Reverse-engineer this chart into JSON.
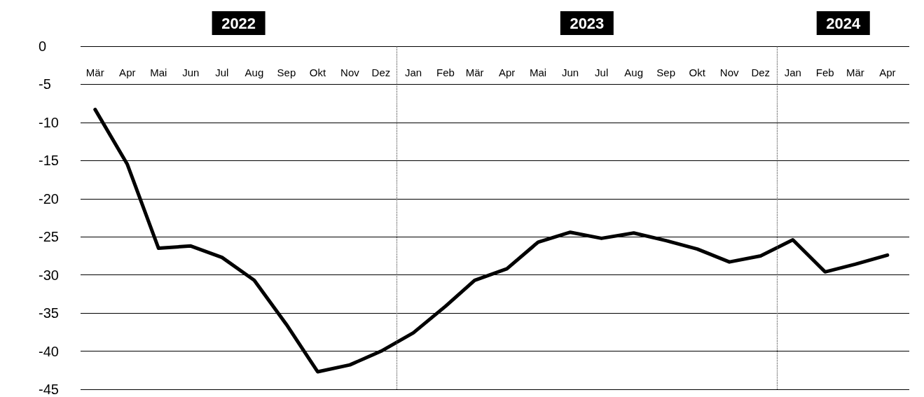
{
  "chart_data": {
    "type": "line",
    "x": [
      "2022-03",
      "2022-04",
      "2022-05",
      "2022-06",
      "2022-07",
      "2022-08",
      "2022-09",
      "2022-10",
      "2022-11",
      "2022-12",
      "2023-01",
      "2023-02",
      "2023-03",
      "2023-04",
      "2023-05",
      "2023-06",
      "2023-07",
      "2023-08",
      "2023-09",
      "2023-10",
      "2023-11",
      "2023-12",
      "2024-01",
      "2024-02",
      "2024-03",
      "2024-04"
    ],
    "series": [
      {
        "color": "#000000",
        "values": [
          -8.3,
          -15.5,
          -26.5,
          -26.2,
          -27.7,
          -30.7,
          -36.5,
          -42.7,
          -41.8,
          -40.0,
          -37.6,
          -34.1,
          -30.7,
          -29.2,
          -25.7,
          -24.4,
          -25.2,
          -24.5,
          -25.5,
          -26.6,
          -28.3,
          -27.5,
          -25.4,
          -29.6,
          -28.6,
          -27.4
        ]
      }
    ],
    "xlim": [
      "2022-02-15",
      "2024-04-22"
    ],
    "xticks": [
      {
        "value": "2022-03",
        "label": "Mär"
      },
      {
        "value": "2022-04",
        "label": "Apr"
      },
      {
        "value": "2022-05",
        "label": "Mai"
      },
      {
        "value": "2022-06",
        "label": "Jun"
      },
      {
        "value": "2022-07",
        "label": "Jul"
      },
      {
        "value": "2022-08",
        "label": "Aug"
      },
      {
        "value": "2022-09",
        "label": "Sep"
      },
      {
        "value": "2022-10",
        "label": "Okt"
      },
      {
        "value": "2022-11",
        "label": "Nov"
      },
      {
        "value": "2022-12",
        "label": "Dez"
      },
      {
        "value": "2023-01",
        "label": "Jan"
      },
      {
        "value": "2023-02",
        "label": "Feb"
      },
      {
        "value": "2023-03",
        "label": "Mär"
      },
      {
        "value": "2023-04",
        "label": "Apr"
      },
      {
        "value": "2023-05",
        "label": "Mai"
      },
      {
        "value": "2023-06",
        "label": "Jun"
      },
      {
        "value": "2023-07",
        "label": "Jul"
      },
      {
        "value": "2023-08",
        "label": "Aug"
      },
      {
        "value": "2023-09",
        "label": "Sep"
      },
      {
        "value": "2023-10",
        "label": "Okt"
      },
      {
        "value": "2023-11",
        "label": "Nov"
      },
      {
        "value": "2023-12",
        "label": "Dez"
      },
      {
        "value": "2024-01",
        "label": "Jan"
      },
      {
        "value": "2024-02",
        "label": "Feb"
      },
      {
        "value": "2024-03",
        "label": "Mär"
      },
      {
        "value": "2024-04",
        "label": "Apr"
      }
    ],
    "ylim": [
      -45,
      0
    ],
    "yticks": [
      0,
      -5,
      -10,
      -15,
      -20,
      -25,
      -30,
      -35,
      -40,
      -45
    ],
    "grid": "y",
    "line_style": "solid",
    "marker": "none",
    "ref_lines": [
      {
        "axis": "x",
        "value": "2022-12-16",
        "label": null,
        "color": "#555555",
        "line_style": "dotted"
      },
      {
        "axis": "x",
        "value": "2023-12-17",
        "label": null,
        "color": "#555555",
        "line_style": "dotted"
      }
    ],
    "annotations": [
      "2022",
      "2023",
      "2024"
    ]
  }
}
